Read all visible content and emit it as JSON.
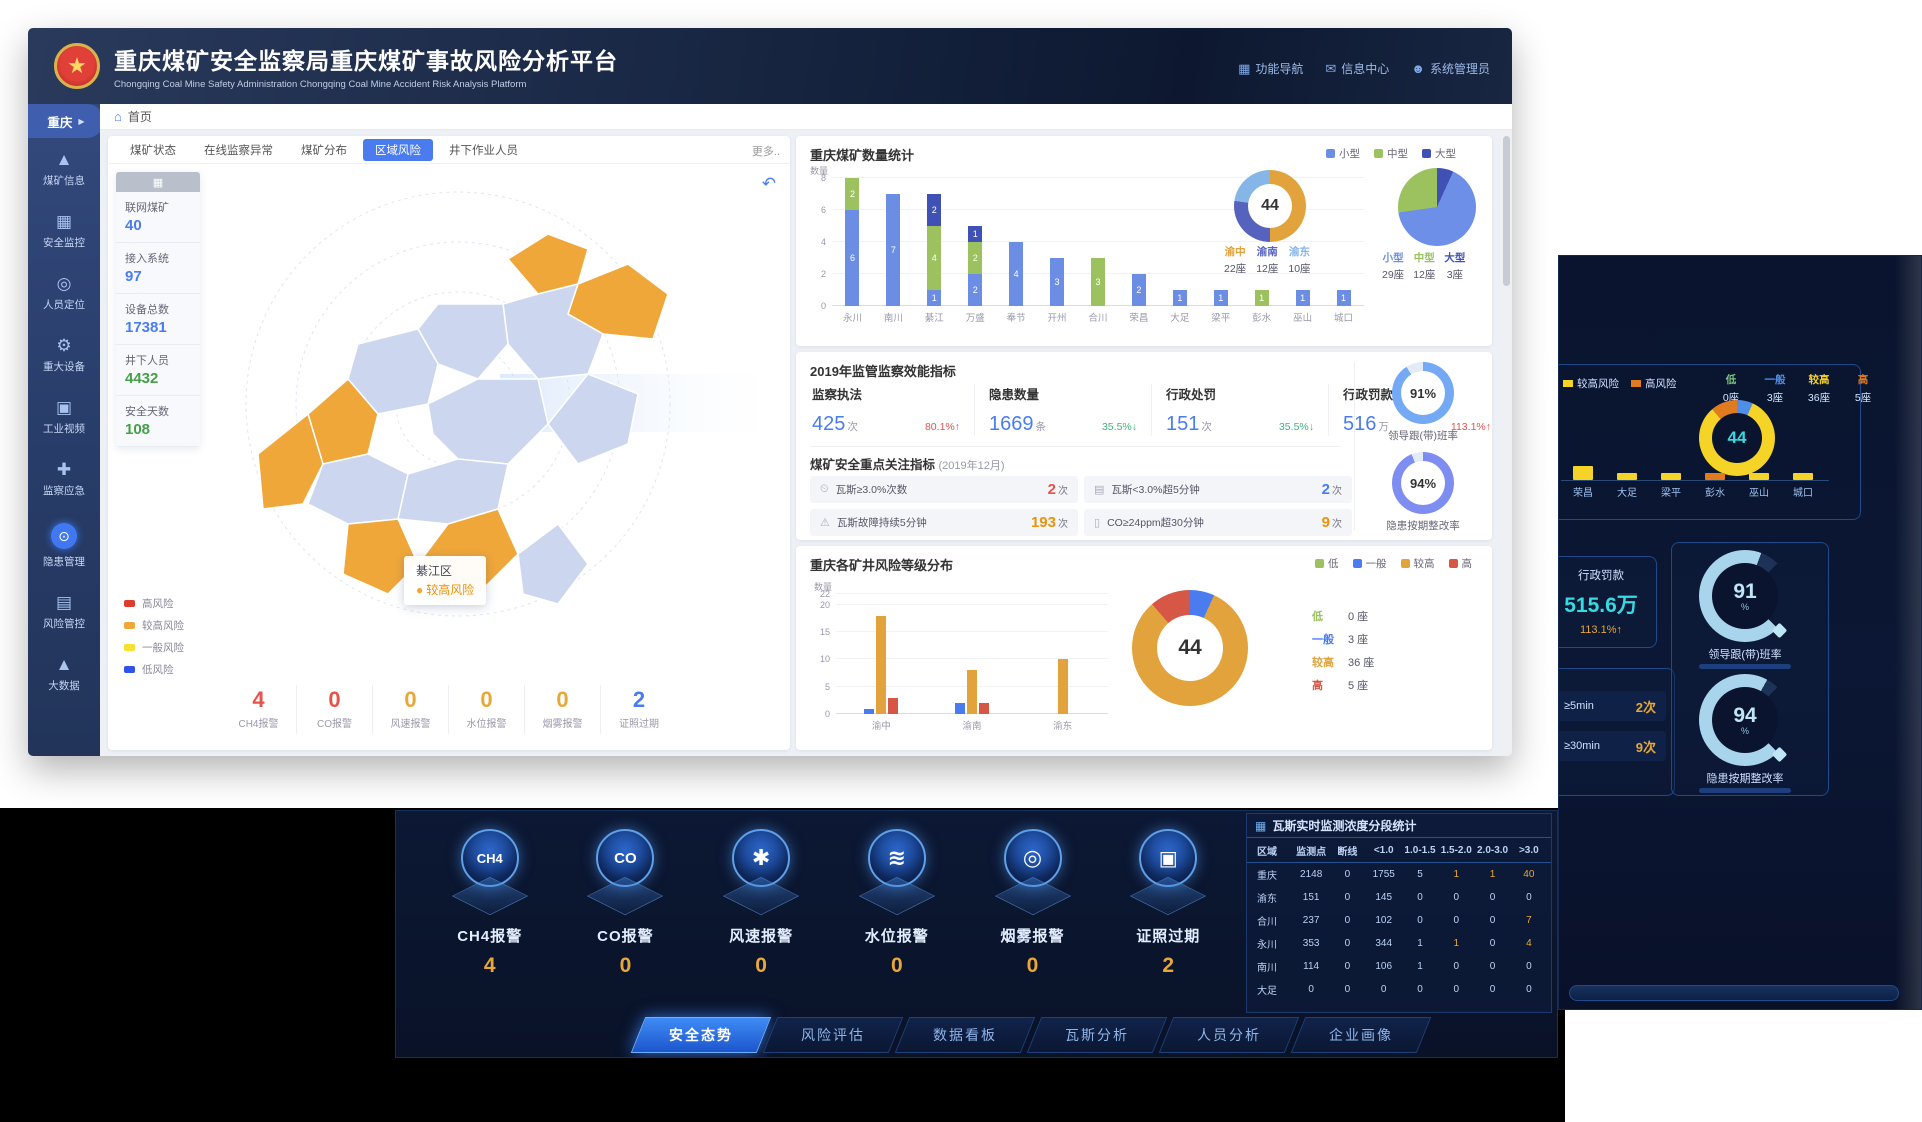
{
  "app": {
    "title": "重庆煤矿安全监察局重庆煤矿事故风险分析平台",
    "subtitle": "Chongqing Coal Mine Safety Administration Chongqing Coal Mine Accident Risk Analysis Platform",
    "nav_links": [
      {
        "icon": "▦",
        "label": "功能导航"
      },
      {
        "icon": "✉",
        "label": "信息中心"
      },
      {
        "icon": "☻",
        "label": "系统管理员"
      }
    ],
    "breadcrumb": "首页"
  },
  "icons": {
    "home": "⌂",
    "back": "↶",
    "table": "▦",
    "stats_header": "▦"
  },
  "sidebar": {
    "region": "重庆",
    "region_arrow": "▶",
    "items": [
      {
        "icon": "▲",
        "label": "煤矿信息"
      },
      {
        "icon": "▦",
        "label": "安全监控"
      },
      {
        "icon": "◎",
        "label": "人员定位"
      },
      {
        "icon": "⚙",
        "label": "重大设备"
      },
      {
        "icon": "▣",
        "label": "工业视频"
      },
      {
        "icon": "✚",
        "label": "监察应急"
      },
      {
        "icon": "⊙",
        "label": "隐患管理",
        "highlight": true
      },
      {
        "icon": "▤",
        "label": "风险管控"
      },
      {
        "icon": "▲",
        "label": "大数据"
      }
    ]
  },
  "map_panel": {
    "tabs": [
      "煤矿状态",
      "在线监察异常",
      "煤矿分布",
      "区域风险",
      "井下作业人员"
    ],
    "active_tab": "区域风险",
    "more": "更多..",
    "stats": [
      {
        "label": "联网煤矿",
        "value": "40",
        "color": "#4a7cf0"
      },
      {
        "label": "接入系统",
        "value": "97",
        "color": "#4a7cf0"
      },
      {
        "label": "设备总数",
        "value": "17381",
        "color": "#4a7cf0"
      },
      {
        "label": "井下人员",
        "value": "4432",
        "color": "#43a047"
      },
      {
        "label": "安全天数",
        "value": "108",
        "color": "#43a047"
      }
    ],
    "tooltip": {
      "name": "綦江区",
      "risk": "较高风险"
    },
    "legend": [
      {
        "label": "高风险",
        "color": "#e03b2f"
      },
      {
        "label": "较高风险",
        "color": "#f0a73a"
      },
      {
        "label": "一般风险",
        "color": "#f7e12c"
      },
      {
        "label": "低风险",
        "color": "#2f54eb"
      }
    ],
    "alarms": [
      {
        "label": "CH4报警",
        "value": "4",
        "color": "#e5534b"
      },
      {
        "label": "CO报警",
        "value": "0",
        "color": "#e5534b"
      },
      {
        "label": "风速报警",
        "value": "0",
        "color": "#e8a838"
      },
      {
        "label": "水位报警",
        "value": "0",
        "color": "#e8a838"
      },
      {
        "label": "烟雾报警",
        "value": "0",
        "color": "#e8a838"
      },
      {
        "label": "证照过期",
        "value": "2",
        "color": "#4a7cf0"
      }
    ]
  },
  "cards": {
    "efficiency": {
      "title": "2019年监管监察效能指标",
      "metrics": [
        {
          "label": "监察执法",
          "num": "425",
          "unit": "次",
          "delta": "80.1%↑",
          "delta_color": "#e5534b"
        },
        {
          "label": "隐患数量",
          "num": "1669",
          "unit": "条",
          "delta": "35.5%↓",
          "delta_color": "#43b27a"
        },
        {
          "label": "行政处罚",
          "num": "151",
          "unit": "次",
          "delta": "35.5%↓",
          "delta_color": "#43b27a"
        },
        {
          "label": "行政罚款",
          "num": "516",
          "unit": "万",
          "delta": "113.1%↑",
          "delta_color": "#e5534b"
        }
      ],
      "subtitle": "煤矿安全重点关注指标",
      "period": "(2019年12月)",
      "focus": [
        {
          "icon": "⏲",
          "label": "瓦斯≥3.0%次数",
          "value": "2",
          "unit": "次",
          "color": "#e5534b"
        },
        {
          "icon": "▤",
          "label": "瓦斯<3.0%超5分钟",
          "value": "2",
          "unit": "次",
          "color": "#4a7cf0"
        },
        {
          "icon": "⚠",
          "label": "瓦斯故障持续5分钟",
          "value": "193",
          "unit": "次",
          "color": "#e8930c"
        },
        {
          "icon": "▯",
          "label": "CO≥24ppm超30分钟",
          "value": "9",
          "unit": "次",
          "color": "#e8930c"
        }
      ],
      "gauges": [
        {
          "value": "91%",
          "label": "领导跟(带)班率",
          "pct": 91,
          "color": "#74a9f5",
          "rest": "#e3ebf7"
        },
        {
          "value": "94%",
          "label": "隐患按期整改率",
          "pct": 94,
          "color": "#7e8df2",
          "rest": "#e3ebf7"
        }
      ]
    }
  },
  "bottom_panel": {
    "alarms": [
      {
        "icon": "CH4",
        "icon_size": "13px",
        "label": "CH4报警",
        "value": "4"
      },
      {
        "icon": "CO",
        "icon_size": "15px",
        "label": "CO报警",
        "value": "0"
      },
      {
        "icon": "✱",
        "icon_size": "22px",
        "label": "风速报警",
        "value": "0"
      },
      {
        "icon": "≋",
        "icon_size": "22px",
        "label": "水位报警",
        "value": "0"
      },
      {
        "icon": "◎",
        "icon_size": "22px",
        "label": "烟雾报警",
        "value": "0"
      },
      {
        "icon": "▣",
        "icon_size": "20px",
        "label": "证照过期",
        "value": "2"
      }
    ],
    "nav_tabs": [
      "安全态势",
      "风险评估",
      "数据看板",
      "瓦斯分析",
      "人员分析",
      "企业画像"
    ],
    "active_nav": "安全态势"
  },
  "right_panel": {
    "legend": [
      {
        "label": "较高风险",
        "color": "#f5d327"
      },
      {
        "label": "高风险",
        "color": "#e07b1f"
      }
    ],
    "counts": [
      {
        "label": "低",
        "count": "0座",
        "color": "#7bc67e"
      },
      {
        "label": "一般",
        "count": "3座",
        "color": "#4f8fe8"
      },
      {
        "label": "较高",
        "count": "36座",
        "color": "#f5d327"
      },
      {
        "label": "高",
        "count": "5座",
        "color": "#e07b1f"
      }
    ],
    "fine": {
      "label": "行政罚款",
      "value": "515.6万",
      "delta": "113.1%↑"
    },
    "rows": [
      {
        "label": "≥5min",
        "value": "2次"
      },
      {
        "label": "≥30min",
        "value": "9次"
      }
    ],
    "gauges": [
      {
        "value": "91",
        "unit": "%",
        "label": "领导跟(带)班率",
        "pct": 91
      },
      {
        "value": "94",
        "unit": "%",
        "label": "隐患按期整改率",
        "pct": 94
      }
    ]
  },
  "chart_data": [
    {
      "id": "mine_count_bar",
      "type": "bar",
      "stacked": true,
      "title": "重庆煤矿数量统计",
      "ylabel": "数量",
      "ylim": [
        0,
        8
      ],
      "yticks": [
        0,
        2,
        4,
        6,
        8
      ],
      "legend_position": "top-right",
      "grid": true,
      "show_value_labels": true,
      "categories": [
        "永川",
        "南川",
        "綦江",
        "万盛",
        "奉节",
        "开州",
        "合川",
        "荣昌",
        "大足",
        "梁平",
        "彭水",
        "巫山",
        "城口"
      ],
      "series": [
        {
          "name": "小型",
          "color": "#6b8de3",
          "values": [
            6,
            7,
            1,
            2,
            4,
            3,
            0,
            2,
            1,
            1,
            0,
            1,
            1
          ]
        },
        {
          "name": "中型",
          "color": "#9bc25e",
          "values": [
            2,
            0,
            4,
            2,
            0,
            0,
            3,
            0,
            0,
            0,
            1,
            0,
            0
          ]
        },
        {
          "name": "大型",
          "color": "#3f51b5",
          "values": [
            0,
            0,
            2,
            1,
            0,
            0,
            0,
            0,
            0,
            0,
            0,
            0,
            0
          ]
        }
      ]
    },
    {
      "id": "region_donut",
      "type": "pie",
      "donut": true,
      "center_label": "44",
      "slices": [
        {
          "label": "渝中",
          "value": 22,
          "count": "22座",
          "color": "#e2a23c"
        },
        {
          "label": "渝南",
          "value": 12,
          "count": "12座",
          "color": "#5563be"
        },
        {
          "label": "渝东",
          "value": 10,
          "count": "10座",
          "color": "#86b5e8"
        }
      ]
    },
    {
      "id": "size_pie",
      "type": "pie",
      "donut": false,
      "slices": [
        {
          "label": "大型",
          "value": 3,
          "count": "3座",
          "color": "#3f51b5"
        },
        {
          "label": "小型",
          "value": 29,
          "count": "29座",
          "color": "#6e8fe8"
        },
        {
          "label": "中型",
          "value": 12,
          "count": "12座",
          "color": "#9bc25e"
        }
      ],
      "legend_order": [
        "小型",
        "中型",
        "大型"
      ]
    },
    {
      "id": "risk_bar",
      "type": "bar",
      "stacked": false,
      "title": "重庆各矿井风险等级分布",
      "ylabel": "数量",
      "ylim": [
        0,
        22
      ],
      "yticks": [
        0,
        5,
        10,
        15,
        20,
        22
      ],
      "legend_position": "top-right",
      "grid": true,
      "show_value_labels": false,
      "categories": [
        "渝中",
        "渝南",
        "渝东"
      ],
      "series": [
        {
          "name": "低",
          "color": "#9bc25e",
          "values": [
            0,
            0,
            0
          ]
        },
        {
          "name": "一般",
          "color": "#4a7cf0",
          "values": [
            1,
            2,
            0
          ]
        },
        {
          "name": "较高",
          "color": "#e2a23c",
          "values": [
            18,
            8,
            10
          ]
        },
        {
          "name": "高",
          "color": "#d65745",
          "values": [
            3,
            2,
            0
          ]
        }
      ]
    },
    {
      "id": "risk_donut",
      "type": "pie",
      "donut": true,
      "center_label": "44",
      "slices": [
        {
          "label": "一般",
          "value": 3,
          "count": "3 座",
          "color": "#4a7cf0"
        },
        {
          "label": "较高",
          "value": 36,
          "count": "36 座",
          "color": "#e2a23c"
        },
        {
          "label": "高",
          "value": 5,
          "count": "5 座",
          "color": "#d65745"
        },
        {
          "label": "低",
          "value": 0,
          "count": "0 座",
          "color": "#9bc25e"
        }
      ],
      "legend_order": [
        "低",
        "一般",
        "较高",
        "高"
      ]
    },
    {
      "id": "gas_table",
      "type": "table",
      "title": "瓦斯实时监测浓度分段统计",
      "columns": [
        "区域",
        "监测点",
        "断线",
        "<1.0",
        "1.0-1.5",
        "1.5-2.0",
        "2.0-3.0",
        ">3.0"
      ],
      "rows": [
        [
          "重庆",
          "2148",
          "0",
          "1755",
          "5",
          "1",
          "1",
          "40"
        ],
        [
          "渝东",
          "151",
          "0",
          "145",
          "0",
          "0",
          "0",
          "0"
        ],
        [
          "合川",
          "237",
          "0",
          "102",
          "0",
          "0",
          "0",
          "7"
        ],
        [
          "永川",
          "353",
          "0",
          "344",
          "1",
          "1",
          "0",
          "4"
        ],
        [
          "南川",
          "114",
          "0",
          "106",
          "1",
          "0",
          "0",
          "0"
        ],
        [
          "大足",
          "0",
          "0",
          "0",
          "0",
          "0",
          "0",
          "0"
        ]
      ],
      "highlights": [
        [
          0,
          5
        ],
        [
          0,
          6
        ],
        [
          0,
          7
        ],
        [
          2,
          7
        ],
        [
          3,
          5
        ],
        [
          3,
          7
        ]
      ],
      "highlight_color": "#e8a838"
    },
    {
      "id": "side_mini_bar",
      "type": "bar",
      "categories": [
        "荣昌",
        "大足",
        "梁平",
        "彭水",
        "巫山",
        "城口"
      ],
      "values": [
        2,
        1,
        1,
        1,
        1,
        1
      ],
      "bar_colors": [
        "#f5d327",
        "#f5d327",
        "#f5d327",
        "#e07b1f",
        "#f5d327",
        "#f5d327"
      ]
    },
    {
      "id": "side_donut",
      "type": "pie",
      "donut": true,
      "center_label": "44",
      "slices": [
        {
          "label": "一般",
          "value": 3,
          "color": "#4f8fe8"
        },
        {
          "label": "较高",
          "value": 36,
          "color": "#f5d327"
        },
        {
          "label": "高",
          "value": 5,
          "color": "#e07b1f"
        }
      ]
    }
  ]
}
